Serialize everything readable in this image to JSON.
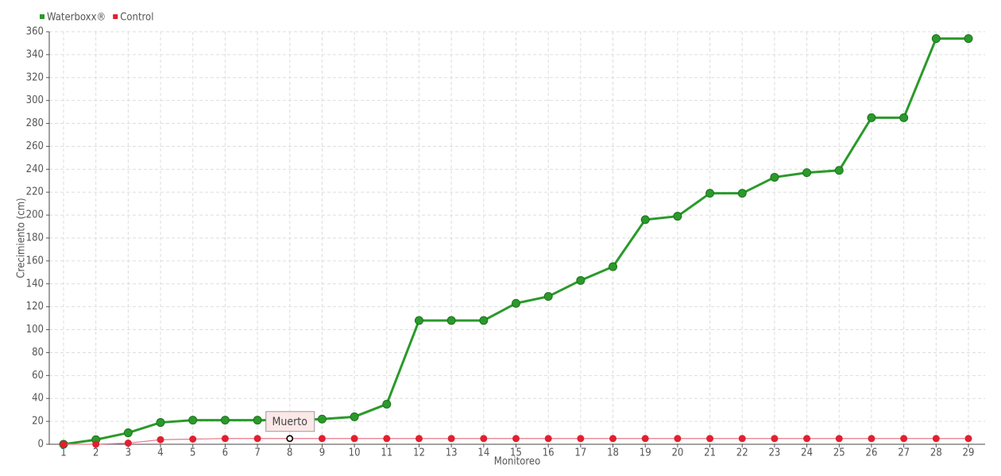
{
  "chart_data": {
    "type": "line",
    "x_label": "Monitoreo",
    "y_label": "Crecimiento (cm)",
    "categories": [
      "1",
      "2",
      "3",
      "4",
      "5",
      "6",
      "7",
      "8",
      "9",
      "10",
      "11",
      "12",
      "13",
      "14",
      "15",
      "16",
      "17",
      "18",
      "19",
      "20",
      "21",
      "22",
      "23",
      "24",
      "25",
      "26",
      "27",
      "28",
      "29"
    ],
    "series": [
      {
        "name": "Waterboxx®",
        "color": "#2a9a2a",
        "values": [
          0,
          4,
          10,
          19,
          21,
          21,
          21,
          21,
          22,
          24,
          35,
          108,
          108,
          108,
          123,
          129,
          143,
          155,
          196,
          199,
          219,
          219,
          233,
          237,
          239,
          285,
          285,
          354,
          354
        ]
      },
      {
        "name": "Control",
        "color": "#e02030",
        "values": [
          0,
          0,
          1,
          4,
          4.5,
          5,
          5,
          5,
          5,
          5,
          5,
          5,
          5,
          5,
          5,
          5,
          5,
          5,
          5,
          5,
          5,
          5,
          5,
          5,
          5,
          5,
          5,
          5,
          5
        ]
      }
    ],
    "annotations": [
      {
        "text": "Muerto",
        "series": "Control",
        "category": "8"
      }
    ],
    "ylim": [
      0,
      360
    ],
    "yticks": [
      0,
      20,
      40,
      60,
      80,
      100,
      120,
      140,
      160,
      180,
      200,
      220,
      240,
      260,
      280,
      300,
      320,
      340,
      360
    ],
    "grid": true,
    "legend": "top-left"
  }
}
